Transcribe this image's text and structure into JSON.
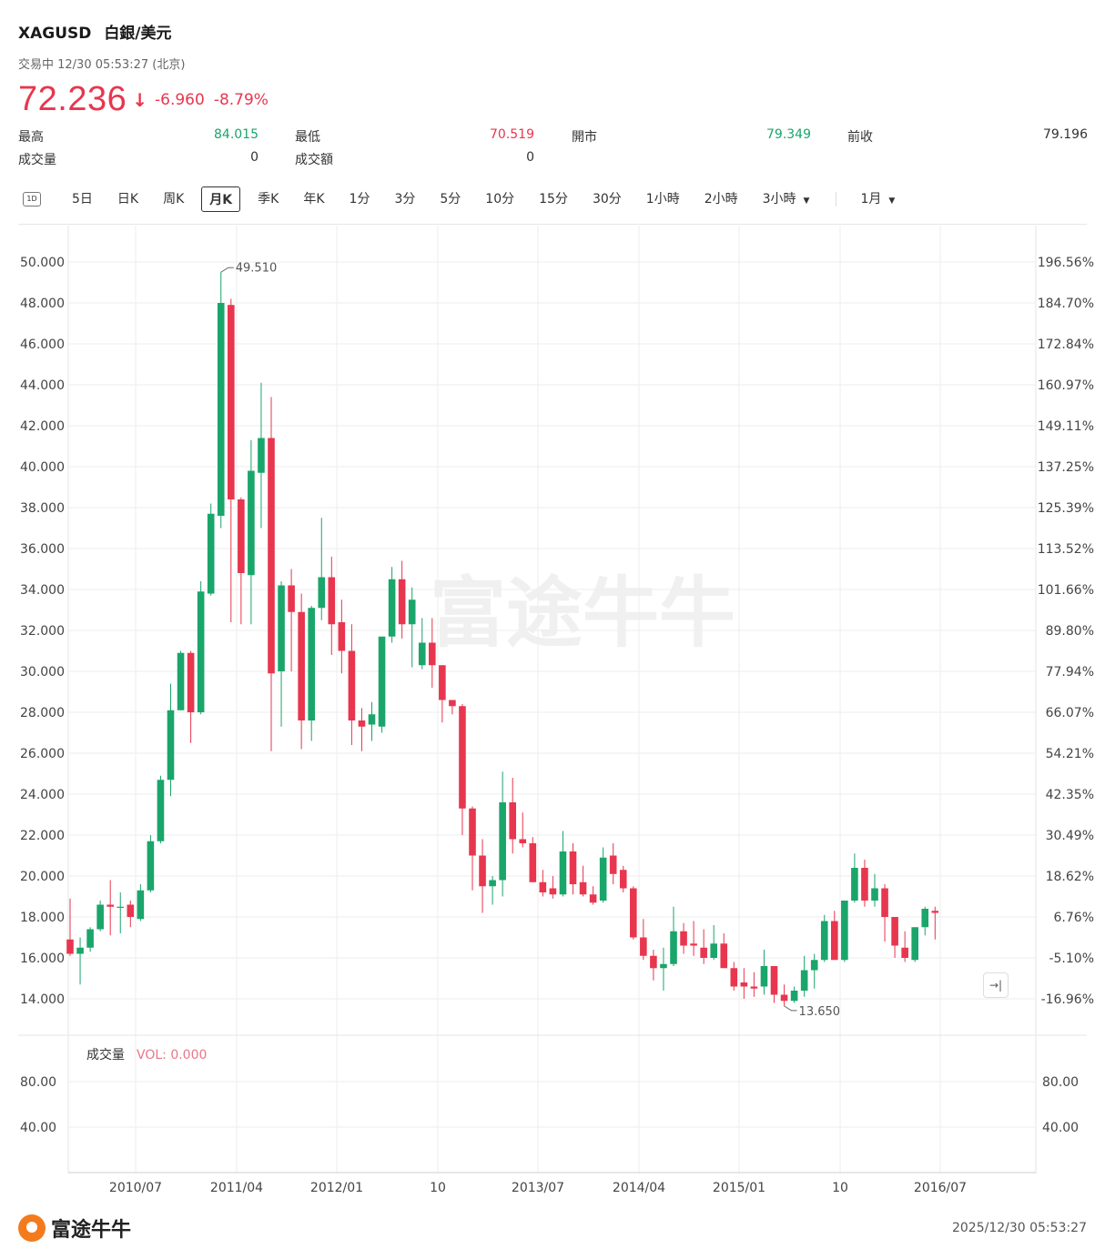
{
  "header": {
    "symbol": "XAGUSD",
    "name": "白銀/美元",
    "status": "交易中 12/30 05:53:27 (北京)",
    "price": "72.236",
    "change": "-6.960",
    "change_pct": "-8.79%"
  },
  "stats": {
    "high_label": "最高",
    "high": "84.015",
    "low_label": "最低",
    "low": "70.519",
    "open_label": "開市",
    "open": "79.349",
    "prev_label": "前收",
    "prev": "79.196",
    "volume_label": "成交量",
    "volume": "0",
    "turnover_label": "成交額",
    "turnover": "0"
  },
  "tabs": {
    "icon_1d": "1D",
    "items": [
      "5日",
      "日K",
      "周K",
      "月K",
      "季K",
      "年K",
      "1分",
      "3分",
      "5分",
      "10分",
      "15分",
      "30分",
      "1小時",
      "2小時"
    ],
    "dropdown": "3小時",
    "range": "1月",
    "active": "月K"
  },
  "colors": {
    "up": "#1aa56b",
    "down": "#e8364f",
    "grid": "#eeeeee"
  },
  "chart_data": {
    "type": "candlestick",
    "ylim": [
      14,
      50
    ],
    "yticks": [
      "50.000",
      "48.000",
      "46.000",
      "44.000",
      "42.000",
      "40.000",
      "38.000",
      "36.000",
      "34.000",
      "32.000",
      "30.000",
      "28.000",
      "26.000",
      "24.000",
      "22.000",
      "20.000",
      "18.000",
      "16.000",
      "14.000"
    ],
    "right_ticks": [
      "196.56%",
      "184.70%",
      "172.84%",
      "160.97%",
      "149.11%",
      "137.25%",
      "125.39%",
      "113.52%",
      "101.66%",
      "89.80%",
      "77.94%",
      "66.07%",
      "54.21%",
      "42.35%",
      "30.49%",
      "18.62%",
      "6.76%",
      "-5.10%",
      "-16.96%"
    ],
    "xticks": [
      "2010/07",
      "2011/04",
      "2012/01",
      "10",
      "2013/07",
      "2014/04",
      "2015/01",
      "10",
      "2016/07"
    ],
    "high_annotation": "49.510",
    "low_annotation": "13.650",
    "candles": [
      {
        "o": 16.9,
        "h": 18.9,
        "l": 16.1,
        "c": 16.2
      },
      {
        "o": 16.2,
        "h": 17.0,
        "l": 14.7,
        "c": 16.5
      },
      {
        "o": 16.5,
        "h": 17.5,
        "l": 16.3,
        "c": 17.4
      },
      {
        "o": 17.4,
        "h": 18.8,
        "l": 17.3,
        "c": 18.6
      },
      {
        "o": 18.6,
        "h": 19.8,
        "l": 17.1,
        "c": 18.5
      },
      {
        "o": 18.5,
        "h": 19.2,
        "l": 17.2,
        "c": 18.5
      },
      {
        "o": 18.6,
        "h": 18.8,
        "l": 17.5,
        "c": 18.0
      },
      {
        "o": 17.9,
        "h": 19.6,
        "l": 17.8,
        "c": 19.3
      },
      {
        "o": 19.3,
        "h": 22.0,
        "l": 19.2,
        "c": 21.7
      },
      {
        "o": 21.7,
        "h": 24.9,
        "l": 21.6,
        "c": 24.7
      },
      {
        "o": 24.7,
        "h": 29.4,
        "l": 23.9,
        "c": 28.1
      },
      {
        "o": 28.1,
        "h": 31.0,
        "l": 28.1,
        "c": 30.9
      },
      {
        "o": 30.9,
        "h": 31.0,
        "l": 26.5,
        "c": 28.0
      },
      {
        "o": 28.0,
        "h": 34.4,
        "l": 27.9,
        "c": 33.9
      },
      {
        "o": 33.8,
        "h": 38.2,
        "l": 33.7,
        "c": 37.7
      },
      {
        "o": 37.6,
        "h": 49.5,
        "l": 37.0,
        "c": 48.0
      },
      {
        "o": 47.9,
        "h": 48.2,
        "l": 32.4,
        "c": 38.4
      },
      {
        "o": 38.4,
        "h": 38.5,
        "l": 32.3,
        "c": 34.8
      },
      {
        "o": 34.7,
        "h": 41.3,
        "l": 32.3,
        "c": 39.8
      },
      {
        "o": 39.7,
        "h": 44.1,
        "l": 37.0,
        "c": 41.4
      },
      {
        "o": 41.4,
        "h": 43.4,
        "l": 26.1,
        "c": 29.9
      },
      {
        "o": 30.0,
        "h": 34.4,
        "l": 27.3,
        "c": 34.2
      },
      {
        "o": 34.2,
        "h": 35.0,
        "l": 30.0,
        "c": 32.9
      },
      {
        "o": 32.9,
        "h": 33.8,
        "l": 26.2,
        "c": 27.6
      },
      {
        "o": 27.6,
        "h": 33.2,
        "l": 26.6,
        "c": 33.1
      },
      {
        "o": 33.1,
        "h": 37.5,
        "l": 32.5,
        "c": 34.6
      },
      {
        "o": 34.6,
        "h": 35.6,
        "l": 30.8,
        "c": 32.3
      },
      {
        "o": 32.4,
        "h": 33.5,
        "l": 29.9,
        "c": 31.0
      },
      {
        "o": 31.0,
        "h": 32.3,
        "l": 26.4,
        "c": 27.6
      },
      {
        "o": 27.6,
        "h": 28.2,
        "l": 26.1,
        "c": 27.3
      },
      {
        "o": 27.4,
        "h": 28.5,
        "l": 26.6,
        "c": 27.9
      },
      {
        "o": 27.3,
        "h": 31.5,
        "l": 27.0,
        "c": 31.7
      },
      {
        "o": 31.7,
        "h": 35.1,
        "l": 31.4,
        "c": 34.5
      },
      {
        "o": 34.5,
        "h": 35.4,
        "l": 31.6,
        "c": 32.3
      },
      {
        "o": 32.3,
        "h": 34.1,
        "l": 30.2,
        "c": 33.5
      },
      {
        "o": 30.3,
        "h": 32.6,
        "l": 30.1,
        "c": 31.4
      },
      {
        "o": 31.4,
        "h": 32.6,
        "l": 29.2,
        "c": 30.3
      },
      {
        "o": 30.3,
        "h": 30.3,
        "l": 27.5,
        "c": 28.6
      },
      {
        "o": 28.6,
        "h": 28.6,
        "l": 27.9,
        "c": 28.3
      },
      {
        "o": 28.3,
        "h": 28.4,
        "l": 22.0,
        "c": 23.3
      },
      {
        "o": 23.3,
        "h": 23.4,
        "l": 19.3,
        "c": 21.0
      },
      {
        "o": 21.0,
        "h": 21.8,
        "l": 18.2,
        "c": 19.5
      },
      {
        "o": 19.5,
        "h": 20.0,
        "l": 18.6,
        "c": 19.8
      },
      {
        "o": 19.8,
        "h": 25.1,
        "l": 19.0,
        "c": 23.6
      },
      {
        "o": 23.6,
        "h": 24.8,
        "l": 21.1,
        "c": 21.8
      },
      {
        "o": 21.8,
        "h": 23.1,
        "l": 21.4,
        "c": 21.6
      },
      {
        "o": 21.6,
        "h": 21.9,
        "l": 19.7,
        "c": 19.7
      },
      {
        "o": 19.7,
        "h": 20.3,
        "l": 19.0,
        "c": 19.2
      },
      {
        "o": 19.4,
        "h": 20.0,
        "l": 18.9,
        "c": 19.1
      },
      {
        "o": 19.1,
        "h": 22.2,
        "l": 19.0,
        "c": 21.2
      },
      {
        "o": 21.2,
        "h": 21.6,
        "l": 19.1,
        "c": 19.6
      },
      {
        "o": 19.7,
        "h": 20.5,
        "l": 19.0,
        "c": 19.1
      },
      {
        "o": 19.1,
        "h": 19.5,
        "l": 18.6,
        "c": 18.7
      },
      {
        "o": 18.8,
        "h": 21.4,
        "l": 18.7,
        "c": 20.9
      },
      {
        "o": 21.0,
        "h": 21.6,
        "l": 19.6,
        "c": 20.1
      },
      {
        "o": 20.3,
        "h": 20.5,
        "l": 19.2,
        "c": 19.4
      },
      {
        "o": 19.4,
        "h": 19.5,
        "l": 16.9,
        "c": 17.0
      },
      {
        "o": 17.0,
        "h": 17.9,
        "l": 15.9,
        "c": 16.1
      },
      {
        "o": 16.1,
        "h": 16.4,
        "l": 14.9,
        "c": 15.5
      },
      {
        "o": 15.5,
        "h": 16.5,
        "l": 14.4,
        "c": 15.7
      },
      {
        "o": 15.7,
        "h": 18.5,
        "l": 15.6,
        "c": 17.3
      },
      {
        "o": 17.3,
        "h": 17.7,
        "l": 16.2,
        "c": 16.6
      },
      {
        "o": 16.7,
        "h": 17.8,
        "l": 16.1,
        "c": 16.6
      },
      {
        "o": 16.5,
        "h": 17.4,
        "l": 15.7,
        "c": 16.0
      },
      {
        "o": 16.0,
        "h": 17.6,
        "l": 15.9,
        "c": 16.7
      },
      {
        "o": 16.7,
        "h": 17.2,
        "l": 15.7,
        "c": 15.5
      },
      {
        "o": 15.5,
        "h": 15.8,
        "l": 14.4,
        "c": 14.6
      },
      {
        "o": 14.8,
        "h": 15.5,
        "l": 14.0,
        "c": 14.6
      },
      {
        "o": 14.6,
        "h": 15.3,
        "l": 14.1,
        "c": 14.5
      },
      {
        "o": 14.6,
        "h": 16.4,
        "l": 14.2,
        "c": 15.6
      },
      {
        "o": 15.6,
        "h": 15.6,
        "l": 13.8,
        "c": 14.2
      },
      {
        "o": 14.2,
        "h": 14.7,
        "l": 13.65,
        "c": 13.9
      },
      {
        "o": 13.9,
        "h": 14.6,
        "l": 13.8,
        "c": 14.4
      },
      {
        "o": 14.4,
        "h": 16.1,
        "l": 14.1,
        "c": 15.4
      },
      {
        "o": 15.4,
        "h": 16.2,
        "l": 14.5,
        "c": 15.9
      },
      {
        "o": 15.9,
        "h": 18.1,
        "l": 15.8,
        "c": 17.8
      },
      {
        "o": 17.8,
        "h": 18.3,
        "l": 15.9,
        "c": 15.9
      },
      {
        "o": 15.9,
        "h": 18.8,
        "l": 15.8,
        "c": 18.8
      },
      {
        "o": 18.8,
        "h": 21.1,
        "l": 18.7,
        "c": 20.4
      },
      {
        "o": 20.4,
        "h": 20.8,
        "l": 18.5,
        "c": 18.8
      },
      {
        "o": 18.8,
        "h": 20.1,
        "l": 18.5,
        "c": 19.4
      },
      {
        "o": 19.4,
        "h": 19.6,
        "l": 16.8,
        "c": 18.0
      },
      {
        "o": 18.0,
        "h": 18.0,
        "l": 16.0,
        "c": 16.6
      },
      {
        "o": 16.5,
        "h": 17.3,
        "l": 15.8,
        "c": 16.0
      },
      {
        "o": 15.9,
        "h": 17.5,
        "l": 15.8,
        "c": 17.5
      },
      {
        "o": 17.5,
        "h": 18.5,
        "l": 17.1,
        "c": 18.4
      },
      {
        "o": 18.3,
        "h": 18.5,
        "l": 16.9,
        "c": 18.2
      }
    ]
  },
  "volume": {
    "label": "成交量",
    "vol_text": "VOL: 0.000",
    "ticks": [
      "80.00",
      "40.00"
    ]
  },
  "footer": {
    "brand": "富途牛牛",
    "timestamp": "2025/12/30 05:53:27",
    "watermark": "富途牛牛"
  }
}
